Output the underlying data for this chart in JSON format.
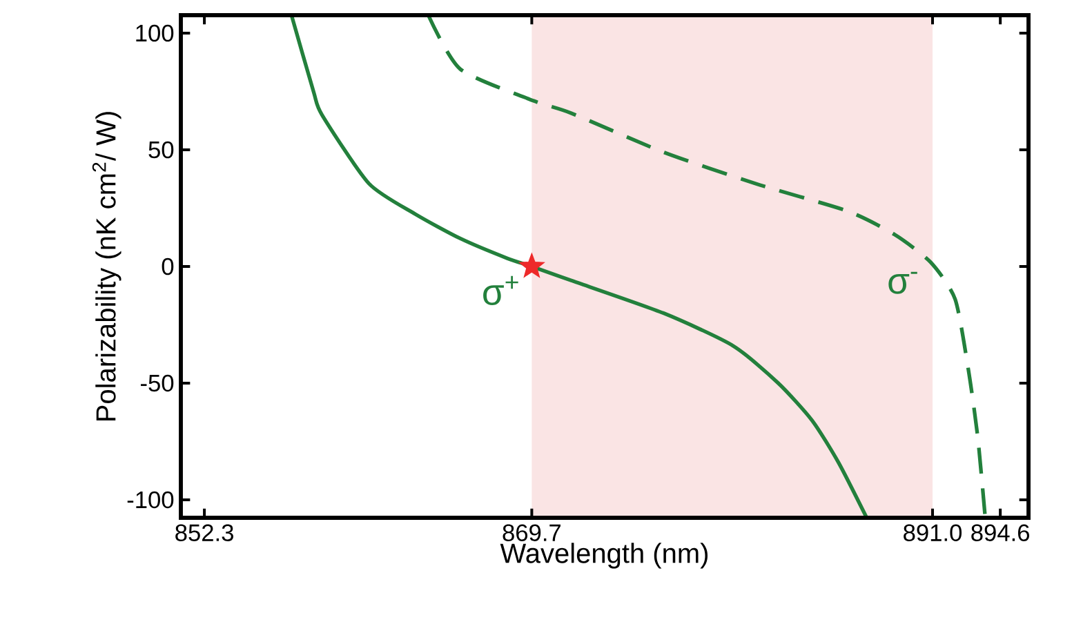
{
  "chart_data": {
    "type": "line",
    "xlabel": "Wavelength (nm)",
    "ylabel": "Polarizability (nK cm$^{2}$/ W)",
    "xlim": [
      851.05,
      896.1
    ],
    "ylim": [
      -107.7,
      107.7
    ],
    "xticks": [
      852.3,
      869.7,
      {
        "value": 891.0,
        "label": "891.0"
      },
      894.6
    ],
    "yticks": [
      -100,
      -50,
      0,
      50,
      100
    ],
    "bands": [
      {
        "axis": "x",
        "from": 869.7,
        "to": 891.0,
        "color": "#fae4e4"
      }
    ],
    "series": [
      {
        "name": "σ$^{+}$",
        "color": "#23803c",
        "line_style": "solid",
        "x": [
          856.93,
          858.1,
          858.55,
          861.05,
          863.5,
          865.9,
          868.4,
          869.7,
          871.8,
          876.7,
          880.4,
          882.8,
          884.6,
          886.0,
          887.5
        ],
        "values": [
          107.7,
          75,
          65,
          35.5,
          22.5,
          12,
          3.5,
          0,
          -6,
          -20,
          -34,
          -50,
          -66,
          -84,
          -107.7
        ]
      },
      {
        "name": "σ$^{-}$",
        "color": "#23803c",
        "line_style": "dashed",
        "x": [
          864.2,
          865.9,
          869.8,
          871.8,
          876.7,
          881.6,
          886.5,
          889.0,
          890.9,
          892.2,
          892.9,
          893.4,
          893.8
        ],
        "values": [
          107.7,
          84.6,
          71,
          65.7,
          49,
          35.5,
          23.7,
          13.6,
          1.8,
          -14,
          -44,
          -73,
          -107.7
        ]
      },
      {
        "type": "scatter",
        "color": "#ee2a2a",
        "marker": "star",
        "x": [
          869.7
        ],
        "values": [
          0
        ]
      }
    ]
  }
}
